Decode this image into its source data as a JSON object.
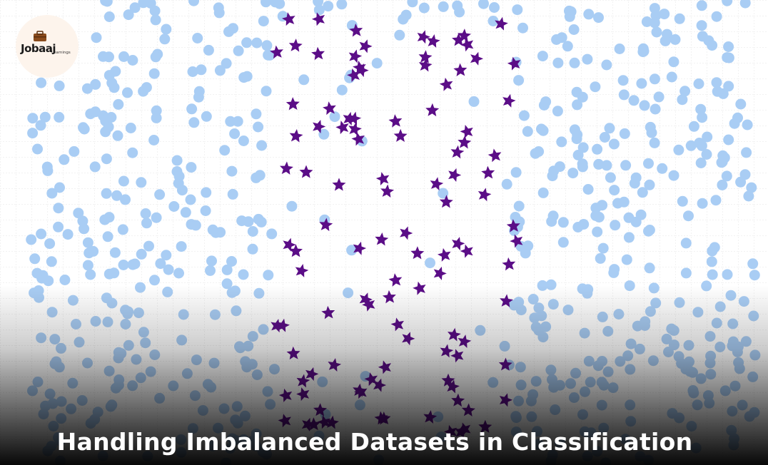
{
  "logo": {
    "name": "Jobaaj",
    "tagline": "Learnings"
  },
  "title": "Handling Imbalanced Datasets in Classification"
}
